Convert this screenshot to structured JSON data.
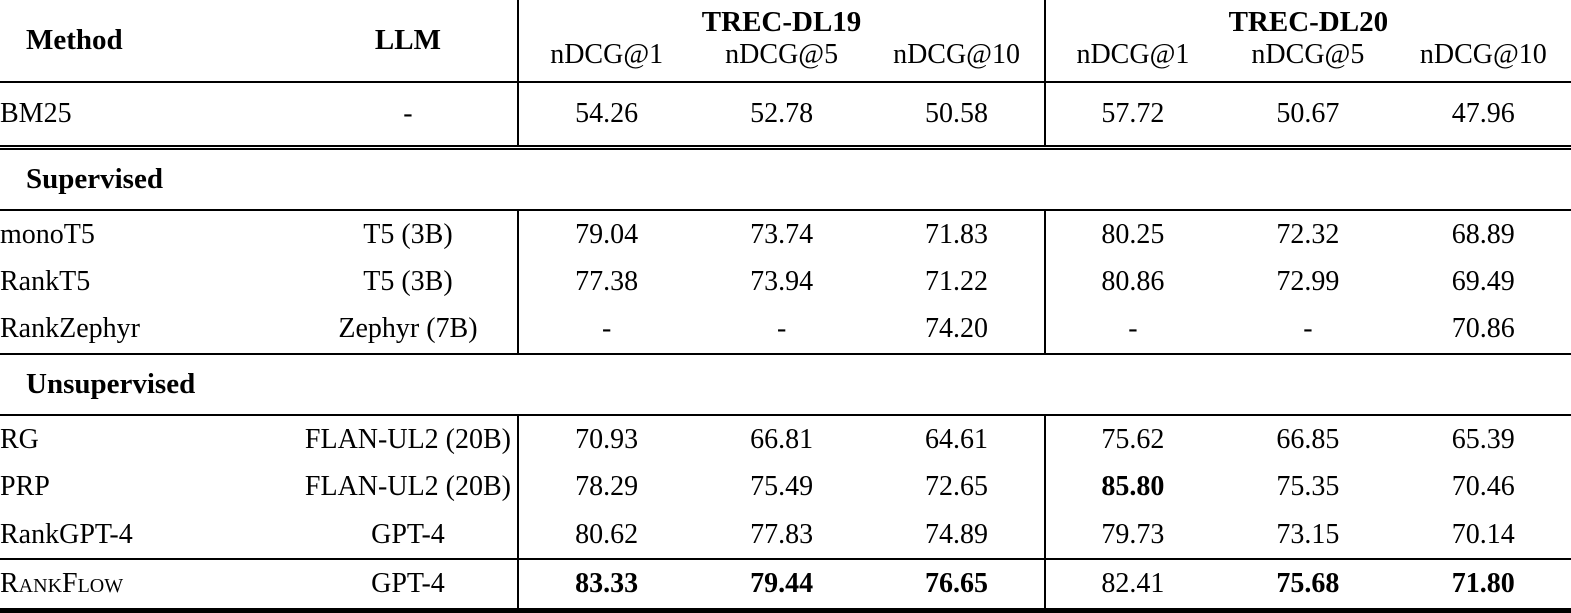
{
  "page": {
    "background": "#ffffff",
    "text_color": "#000000"
  },
  "table": {
    "method_header": "Method",
    "llm_header": "LLM",
    "groups": [
      {
        "label": "TREC-DL19",
        "subcols": [
          "nDCG@1",
          "nDCG@5",
          "nDCG@10"
        ]
      },
      {
        "label": "TREC-DL20",
        "subcols": [
          "nDCG@1",
          "nDCG@5",
          "nDCG@10"
        ]
      }
    ],
    "sections": [
      {
        "header": null,
        "rows": [
          {
            "method": "BM25",
            "llm": "-",
            "values": [
              "54.26",
              "52.78",
              "50.58",
              "57.72",
              "50.67",
              "47.96"
            ],
            "bold": [],
            "smallcaps": false
          }
        ]
      },
      {
        "header": "Supervised",
        "rows": [
          {
            "method": "monoT5",
            "llm": "T5 (3B)",
            "values": [
              "79.04",
              "73.74",
              "71.83",
              "80.25",
              "72.32",
              "68.89"
            ],
            "bold": [],
            "smallcaps": false
          },
          {
            "method": "RankT5",
            "llm": "T5 (3B)",
            "values": [
              "77.38",
              "73.94",
              "71.22",
              "80.86",
              "72.99",
              "69.49"
            ],
            "bold": [],
            "smallcaps": false
          },
          {
            "method": "RankZephyr",
            "llm": "Zephyr (7B)",
            "values": [
              "-",
              "-",
              "74.20",
              "-",
              "-",
              "70.86"
            ],
            "bold": [],
            "smallcaps": false
          }
        ]
      },
      {
        "header": "Unsupervised",
        "rows": [
          {
            "method": "RG",
            "llm": "FLAN-UL2 (20B)",
            "values": [
              "70.93",
              "66.81",
              "64.61",
              "75.62",
              "66.85",
              "65.39"
            ],
            "bold": [],
            "smallcaps": false
          },
          {
            "method": "PRP",
            "llm": "FLAN-UL2 (20B)",
            "values": [
              "78.29",
              "75.49",
              "72.65",
              "85.80",
              "75.35",
              "70.46"
            ],
            "bold": [
              3
            ],
            "smallcaps": false
          },
          {
            "method": "RankGPT-4",
            "llm": "GPT-4",
            "values": [
              "80.62",
              "77.83",
              "74.89",
              "79.73",
              "73.15",
              "70.14"
            ],
            "bold": [],
            "smallcaps": false
          }
        ]
      },
      {
        "header": null,
        "rows": [
          {
            "method": "RankFlow",
            "llm": "GPT-4",
            "values": [
              "83.33",
              "79.44",
              "76.65",
              "82.41",
              "75.68",
              "71.80"
            ],
            "bold": [
              0,
              1,
              2,
              4,
              5
            ],
            "smallcaps": true
          }
        ]
      }
    ]
  }
}
